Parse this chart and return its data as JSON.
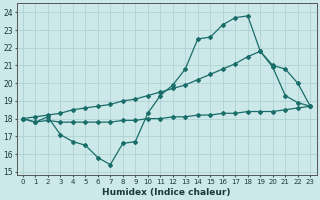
{
  "xlabel": "Humidex (Indice chaleur)",
  "xlim": [
    -0.5,
    23.5
  ],
  "ylim": [
    14.8,
    24.5
  ],
  "xticks": [
    0,
    1,
    2,
    3,
    4,
    5,
    6,
    7,
    8,
    9,
    10,
    11,
    12,
    13,
    14,
    15,
    16,
    17,
    18,
    19,
    20,
    21,
    22,
    23
  ],
  "yticks": [
    15,
    16,
    17,
    18,
    19,
    20,
    21,
    22,
    23,
    24
  ],
  "bg_color": "#cce8e8",
  "line_color": "#1a6e6a",
  "line1_x": [
    0,
    1,
    2,
    3,
    4,
    5,
    6,
    7,
    8,
    9,
    10,
    11,
    12,
    13,
    14,
    15,
    16,
    17,
    18,
    19,
    20,
    21,
    22,
    23
  ],
  "line1_y": [
    18.0,
    17.8,
    18.1,
    17.1,
    16.7,
    16.5,
    15.8,
    15.4,
    16.6,
    16.7,
    18.3,
    19.3,
    19.9,
    20.8,
    22.5,
    22.6,
    23.3,
    23.7,
    23.8,
    21.8,
    20.9,
    19.3,
    18.9,
    18.7
  ],
  "line2_x": [
    0,
    1,
    2,
    3,
    4,
    5,
    6,
    7,
    8,
    9,
    10,
    11,
    12,
    13,
    14,
    15,
    16,
    17,
    18,
    19,
    20,
    21,
    22,
    23
  ],
  "line2_y": [
    18.0,
    18.1,
    18.2,
    18.3,
    18.5,
    18.6,
    18.7,
    18.8,
    19.0,
    19.1,
    19.3,
    19.5,
    19.7,
    19.9,
    20.2,
    20.5,
    20.8,
    21.1,
    21.5,
    21.8,
    21.0,
    20.8,
    20.0,
    18.7
  ],
  "line3_x": [
    0,
    1,
    2,
    3,
    4,
    5,
    6,
    7,
    8,
    9,
    10,
    11,
    12,
    13,
    14,
    15,
    16,
    17,
    18,
    19,
    20,
    21,
    22,
    23
  ],
  "line3_y": [
    18.0,
    17.8,
    17.9,
    17.8,
    17.8,
    17.8,
    17.8,
    17.8,
    17.9,
    17.9,
    18.0,
    18.0,
    18.1,
    18.1,
    18.2,
    18.2,
    18.3,
    18.3,
    18.4,
    18.4,
    18.4,
    18.5,
    18.6,
    18.7
  ]
}
